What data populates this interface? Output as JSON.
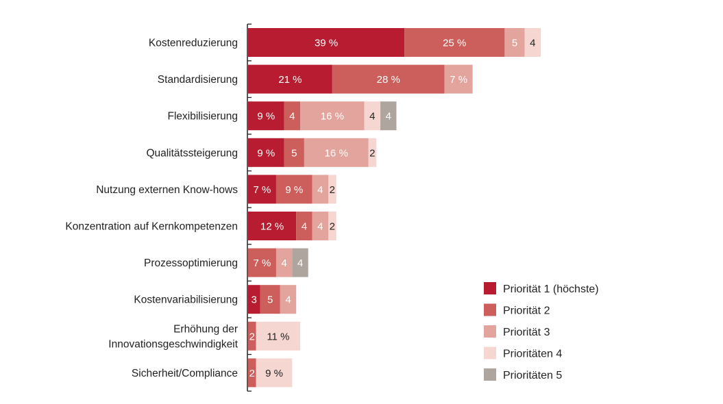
{
  "chart_data": {
    "type": "bar",
    "orientation": "horizontal",
    "stacked": true,
    "categories": [
      "Kostenreduzierung",
      "Standardisierung",
      "Flexibilisierung",
      "Qualitätssteigerung",
      "Nutzung externen Know-hows",
      "Konzentration auf Kernkompetenzen",
      "Prozessoptimierung",
      "Kostenvariabilisierung",
      "Erhöhung der\nInnovationsgeschwindigkeit",
      "Sicherheit/Compliance"
    ],
    "series": [
      {
        "name": "Priorität 1 (höchste)",
        "color": "#b81c30",
        "label_color": "#ffffff",
        "values": [
          39,
          21,
          9,
          9,
          7,
          12,
          0,
          3,
          0,
          0
        ],
        "labels": [
          "39 %",
          "21 %",
          "9 %",
          "9 %",
          "7 %",
          "12 %",
          "",
          "3",
          "",
          ""
        ]
      },
      {
        "name": "Priorität 2",
        "color": "#cc5f5b",
        "label_color": "#ffffff",
        "values": [
          25,
          28,
          4,
          5,
          9,
          4,
          7,
          5,
          2,
          2
        ],
        "labels": [
          "25 %",
          "28 %",
          "4",
          "5",
          "9 %",
          "4",
          "7 %",
          "5",
          "2",
          "2"
        ]
      },
      {
        "name": "Priorität 3",
        "color": "#e3a49d",
        "label_color": "#ffffff",
        "values": [
          5,
          7,
          16,
          16,
          4,
          4,
          4,
          4,
          0,
          0
        ],
        "labels": [
          "5",
          "7 %",
          "16 %",
          "16 %",
          "4",
          "4",
          "4",
          "4",
          "",
          ""
        ]
      },
      {
        "name": "Prioritäten 4",
        "color": "#f6d6d1",
        "label_color": "#222222",
        "values": [
          4,
          0,
          4,
          2,
          2,
          2,
          0,
          0,
          11,
          9
        ],
        "labels": [
          "4",
          "",
          "4",
          "2",
          "2",
          "2",
          "",
          "",
          "11 %",
          "9 %"
        ]
      },
      {
        "name": "Prioritäten 5",
        "color": "#aea59f",
        "label_color": "#ffffff",
        "values": [
          0,
          0,
          4,
          0,
          0,
          0,
          4,
          0,
          0,
          0
        ],
        "labels": [
          "",
          "",
          "4",
          "",
          "",
          "",
          "4",
          "",
          "",
          ""
        ]
      }
    ],
    "legend_position": "bottom-right",
    "grid": false
  }
}
